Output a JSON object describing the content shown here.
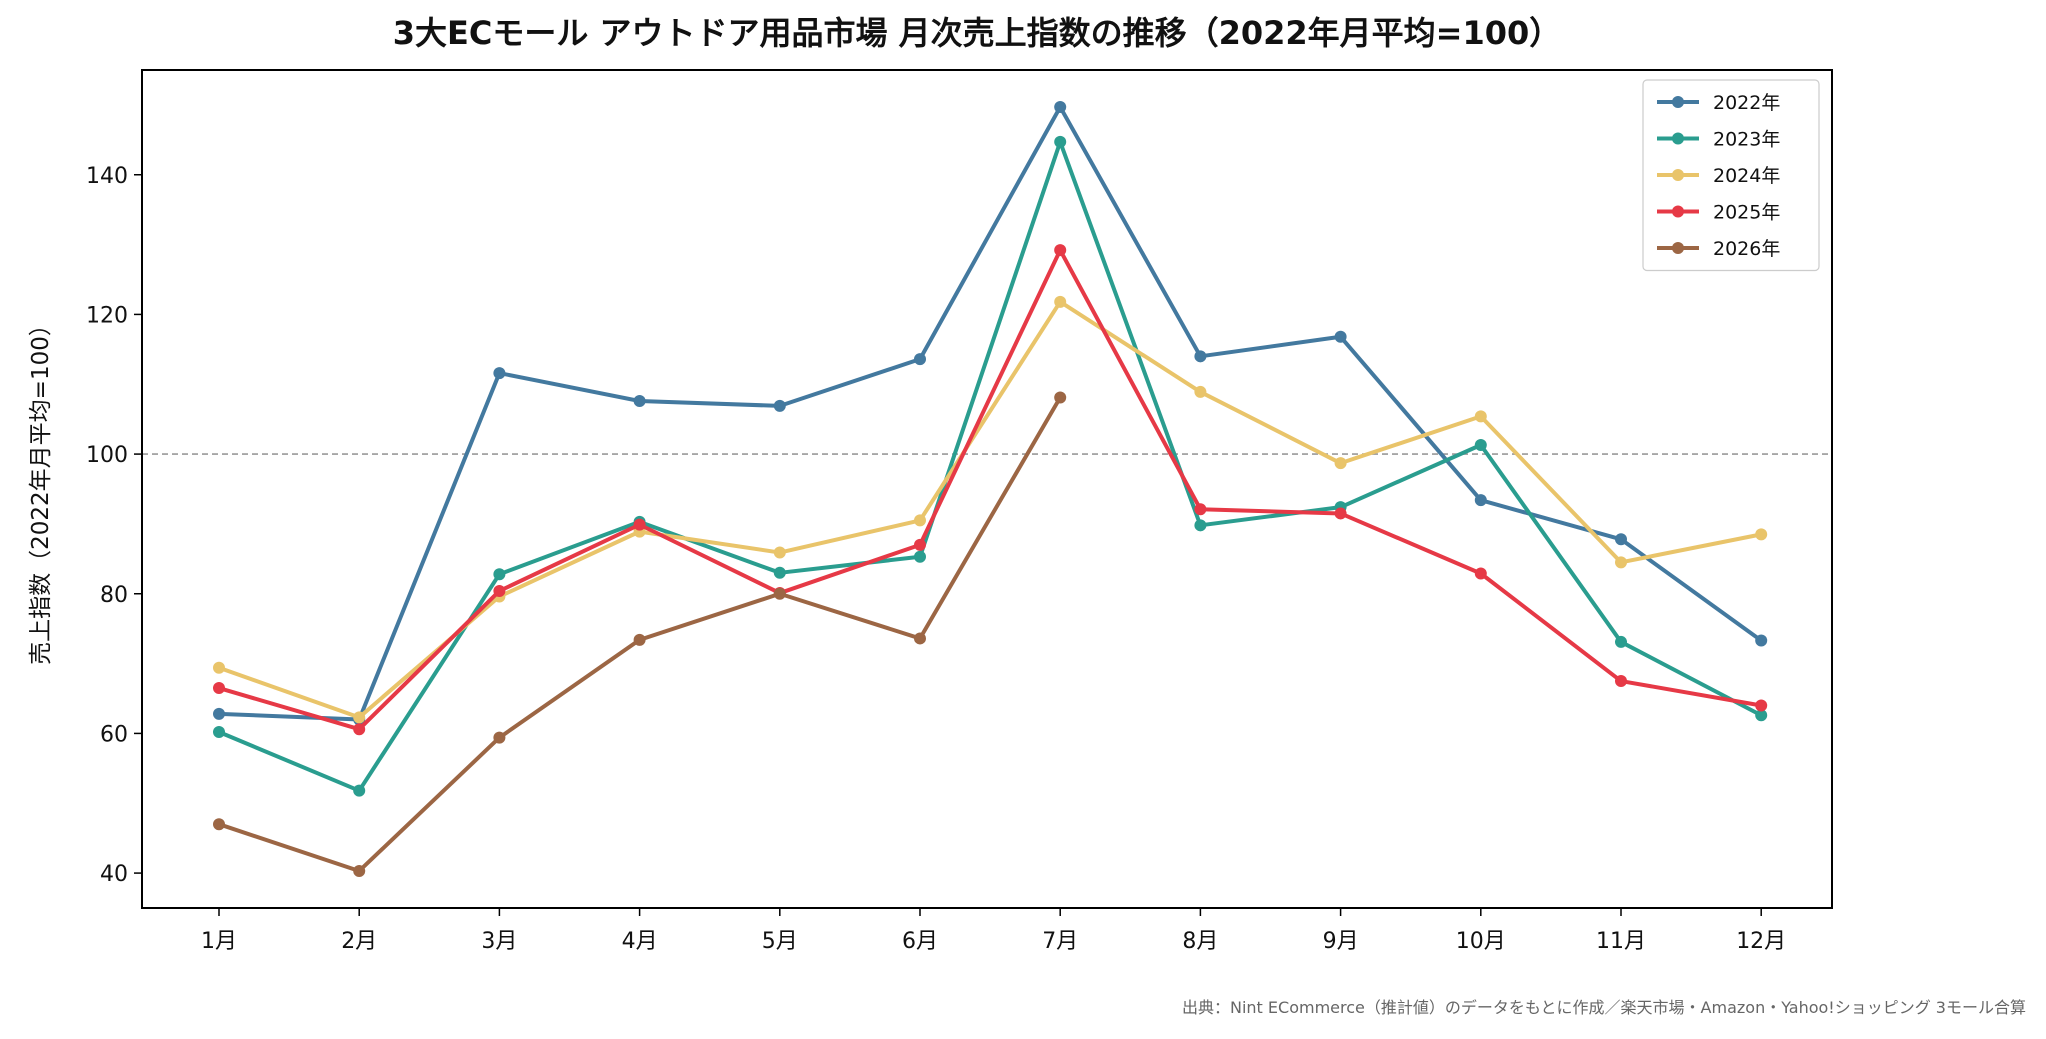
{
  "chart_data": {
    "type": "line",
    "title": "3大ECモール アウトドア用品市場 月次売上指数の推移（2022年月平均=100）",
    "xlabel": "",
    "ylabel": "売上指数（2022年月平均=100）",
    "categories": [
      "1月",
      "2月",
      "3月",
      "4月",
      "5月",
      "6月",
      "7月",
      "8月",
      "9月",
      "10月",
      "11月",
      "12月"
    ],
    "ylim": [
      35,
      155
    ],
    "yticks": [
      40,
      60,
      80,
      100,
      120,
      140
    ],
    "reference_line": 100,
    "grid": false,
    "legend_position": "top-right",
    "series": [
      {
        "name": "2022年",
        "color": "#43799f",
        "values": [
          62.8,
          62.0,
          111.6,
          107.6,
          106.9,
          113.6,
          149.7,
          114.0,
          116.8,
          93.4,
          87.8,
          73.3
        ]
      },
      {
        "name": "2023年",
        "color": "#2a9d8f",
        "values": [
          60.2,
          51.8,
          82.8,
          90.3,
          83.0,
          85.3,
          144.7,
          89.8,
          92.4,
          101.3,
          73.1,
          62.6
        ]
      },
      {
        "name": "2024年",
        "color": "#e9c46a",
        "values": [
          69.4,
          62.3,
          79.6,
          88.9,
          85.9,
          90.5,
          121.8,
          108.9,
          98.7,
          105.4,
          84.5,
          88.5
        ]
      },
      {
        "name": "2025年",
        "color": "#e63946",
        "values": [
          66.5,
          60.6,
          80.4,
          89.9,
          80.1,
          87.0,
          129.2,
          92.1,
          91.5,
          82.9,
          67.5,
          64.0
        ]
      },
      {
        "name": "2026年",
        "color": "#9c6644",
        "values": [
          47.0,
          40.3,
          59.4,
          73.4,
          80.0,
          73.6,
          108.1,
          null,
          null,
          null,
          null,
          null
        ]
      }
    ],
    "source": "出典：Nint ECommerce（推計値）のデータをもとに作成／楽天市場・Amazon・Yahoo!ショッピング 3モール合算"
  }
}
